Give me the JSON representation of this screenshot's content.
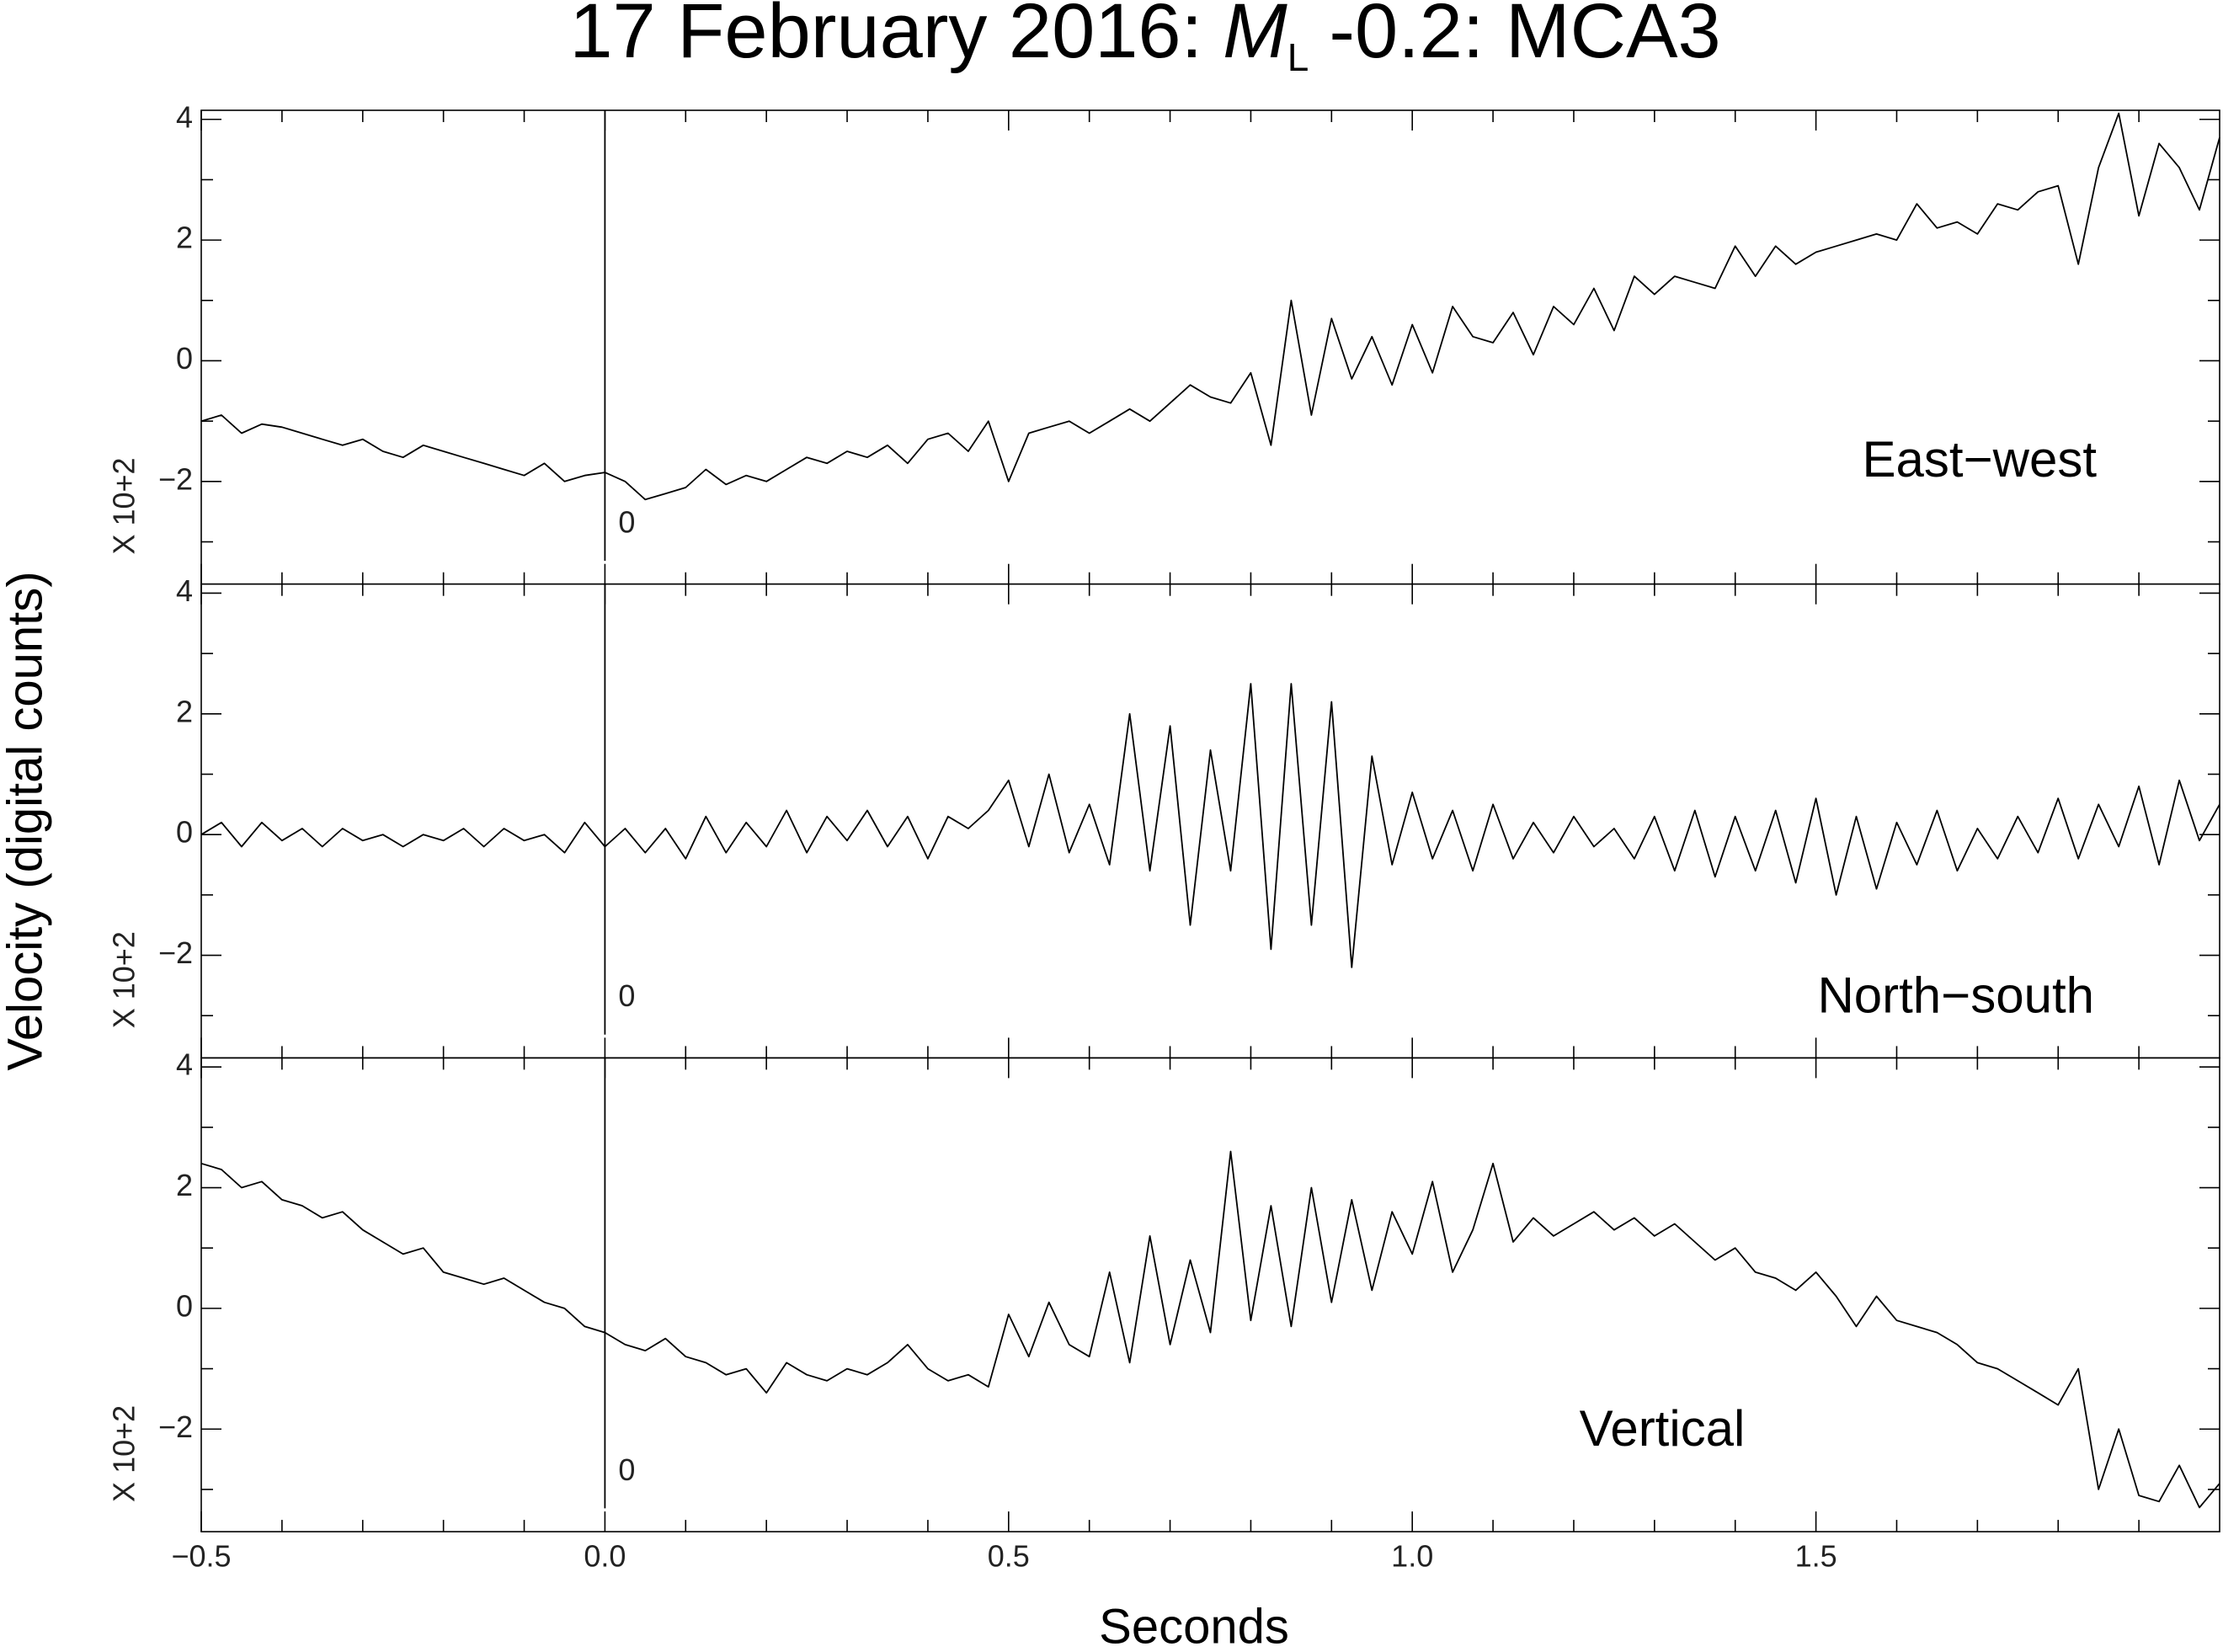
{
  "chart_data": {
    "type": "line",
    "title": "17 February 2016:",
    "title_symbol": "M",
    "title_subscript": "L",
    "title_rest": "-0.2: MCA3",
    "xlabel": "Seconds",
    "ylabel": "Velocity (digital counts)",
    "scale_label": "X 10+2",
    "marker": {
      "value": 0,
      "label": "0"
    },
    "color": "#000000",
    "xlim": [
      -0.5,
      2.0
    ],
    "xticks": [
      {
        "value": -0.5,
        "label": "−0.5"
      },
      {
        "value": 0,
        "label": "0.0"
      },
      {
        "value": 0.5,
        "label": "0.5"
      },
      {
        "value": 1.0,
        "label": "1.0"
      },
      {
        "value": 1.5,
        "label": "1.5"
      }
    ],
    "xminorticks": [
      -0.4,
      -0.3,
      -0.2,
      -0.1,
      0.1,
      0.2,
      0.3,
      0.4,
      0.6,
      0.7,
      0.8,
      0.9,
      1.1,
      1.2,
      1.3,
      1.4,
      1.6,
      1.7,
      1.8,
      1.9
    ],
    "ylim": [
      -3.7,
      4.15
    ],
    "yticks": [
      {
        "value": -2,
        "label": "−2"
      },
      0,
      2,
      4
    ],
    "yminorticks": [
      -3,
      -1,
      1,
      3
    ],
    "x": [
      -0.5,
      -0.475,
      -0.45,
      -0.425,
      -0.4,
      -0.375,
      -0.35,
      -0.325,
      -0.3,
      -0.275,
      -0.25,
      -0.225,
      -0.2,
      -0.175,
      -0.15,
      -0.125,
      -0.1,
      -0.075,
      -0.05,
      -0.025,
      0,
      0.025,
      0.05,
      0.075,
      0.1,
      0.125,
      0.15,
      0.175,
      0.2,
      0.225,
      0.25,
      0.275,
      0.3,
      0.325,
      0.35,
      0.375,
      0.4,
      0.425,
      0.45,
      0.475,
      0.5,
      0.525,
      0.55,
      0.575,
      0.6,
      0.625,
      0.65,
      0.675,
      0.7,
      0.725,
      0.75,
      0.775,
      0.8,
      0.825,
      0.85,
      0.875,
      0.9,
      0.925,
      0.95,
      0.975,
      1.0,
      1.025,
      1.05,
      1.075,
      1.1,
      1.125,
      1.15,
      1.175,
      1.2,
      1.225,
      1.25,
      1.275,
      1.3,
      1.325,
      1.35,
      1.375,
      1.4,
      1.425,
      1.45,
      1.475,
      1.5,
      1.525,
      1.55,
      1.575,
      1.6,
      1.625,
      1.65,
      1.675,
      1.7,
      1.725,
      1.75,
      1.775,
      1.8,
      1.825,
      1.85,
      1.875,
      1.9,
      1.925,
      1.95,
      1.975,
      2.0
    ],
    "series": [
      {
        "name": "East−west",
        "values": [
          -1.0,
          -0.9,
          -1.2,
          -1.05,
          -1.1,
          -1.2,
          -1.3,
          -1.4,
          -1.3,
          -1.5,
          -1.6,
          -1.4,
          -1.5,
          -1.6,
          -1.7,
          -1.8,
          -1.9,
          -1.7,
          -2.0,
          -1.9,
          -1.85,
          -2.0,
          -2.3,
          -2.2,
          -2.1,
          -1.8,
          -2.05,
          -1.9,
          -2.0,
          -1.8,
          -1.6,
          -1.7,
          -1.5,
          -1.6,
          -1.4,
          -1.7,
          -1.3,
          -1.2,
          -1.5,
          -1.0,
          -2.0,
          -1.2,
          -1.1,
          -1.0,
          -1.2,
          -1.0,
          -0.8,
          -1.0,
          -0.7,
          -0.4,
          -0.6,
          -0.7,
          -0.2,
          -1.4,
          1.0,
          -0.9,
          0.7,
          -0.3,
          0.4,
          -0.4,
          0.6,
          -0.2,
          0.9,
          0.4,
          0.3,
          0.8,
          0.1,
          0.9,
          0.6,
          1.2,
          0.5,
          1.4,
          1.1,
          1.4,
          1.3,
          1.2,
          1.9,
          1.4,
          1.9,
          1.6,
          1.8,
          1.9,
          2.0,
          2.1,
          2.0,
          2.6,
          2.2,
          2.3,
          2.1,
          2.6,
          2.5,
          2.8,
          2.9,
          1.6,
          3.2,
          4.1,
          2.4,
          3.6,
          3.2,
          2.5,
          3.7
        ]
      },
      {
        "name": "North−south",
        "values": [
          0,
          0.2,
          -0.2,
          0.2,
          -0.1,
          0.1,
          -0.2,
          0.1,
          -0.1,
          0,
          -0.2,
          0,
          -0.1,
          0.1,
          -0.2,
          0.1,
          -0.1,
          0,
          -0.3,
          0.2,
          -0.2,
          0.1,
          -0.3,
          0.1,
          -0.4,
          0.3,
          -0.3,
          0.2,
          -0.2,
          0.4,
          -0.3,
          0.3,
          -0.1,
          0.4,
          -0.2,
          0.3,
          -0.4,
          0.3,
          0.1,
          0.4,
          0.9,
          -0.2,
          1.0,
          -0.3,
          0.5,
          -0.5,
          2.0,
          -0.6,
          1.8,
          -1.5,
          1.4,
          -0.6,
          2.5,
          -1.9,
          2.5,
          -1.5,
          2.2,
          -2.2,
          1.3,
          -0.5,
          0.7,
          -0.4,
          0.4,
          -0.6,
          0.5,
          -0.4,
          0.2,
          -0.3,
          0.3,
          -0.2,
          0.1,
          -0.4,
          0.3,
          -0.6,
          0.4,
          -0.7,
          0.3,
          -0.6,
          0.4,
          -0.8,
          0.6,
          -1.0,
          0.3,
          -0.9,
          0.2,
          -0.5,
          0.4,
          -0.6,
          0.1,
          -0.4,
          0.3,
          -0.3,
          0.6,
          -0.4,
          0.5,
          -0.2,
          0.8,
          -0.5,
          0.9,
          -0.1,
          0.5
        ]
      },
      {
        "name": "Vertical",
        "values": [
          2.4,
          2.3,
          2.0,
          2.1,
          1.8,
          1.7,
          1.5,
          1.6,
          1.3,
          1.1,
          0.9,
          1.0,
          0.6,
          0.5,
          0.4,
          0.5,
          0.3,
          0.1,
          0.0,
          -0.3,
          -0.4,
          -0.6,
          -0.7,
          -0.5,
          -0.8,
          -0.9,
          -1.1,
          -1.0,
          -1.4,
          -0.9,
          -1.1,
          -1.2,
          -1.0,
          -1.1,
          -0.9,
          -0.6,
          -1.0,
          -1.2,
          -1.1,
          -1.3,
          -0.1,
          -0.8,
          0.1,
          -0.6,
          -0.8,
          0.6,
          -0.9,
          1.2,
          -0.6,
          0.8,
          -0.4,
          2.6,
          -0.2,
          1.7,
          -0.3,
          2.0,
          0.1,
          1.8,
          0.3,
          1.6,
          0.9,
          2.1,
          0.6,
          1.3,
          2.4,
          1.1,
          1.5,
          1.2,
          1.4,
          1.6,
          1.3,
          1.5,
          1.2,
          1.4,
          1.1,
          0.8,
          1.0,
          0.6,
          0.5,
          0.3,
          0.6,
          0.2,
          -0.3,
          0.2,
          -0.2,
          -0.3,
          -0.4,
          -0.6,
          -0.9,
          -1.0,
          -1.2,
          -1.4,
          -1.6,
          -1.0,
          -3.0,
          -2.0,
          -3.1,
          -3.2,
          -2.6,
          -3.3,
          -2.9
        ]
      }
    ]
  }
}
